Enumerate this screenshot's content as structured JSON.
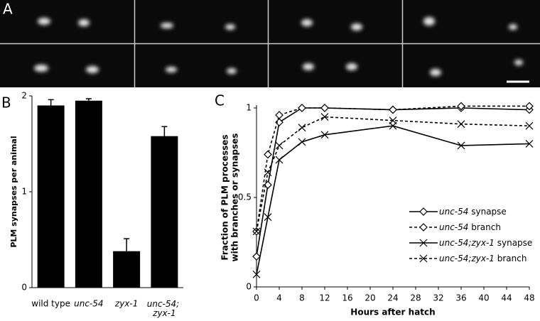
{
  "panels": [
    "A",
    "B",
    "C"
  ],
  "chart_data": [
    {
      "type": "bar",
      "y_label": "PLM synapses per animal",
      "categories": [
        "wild type",
        "unc-54",
        "zyx-1",
        "unc-54; zyx-1"
      ],
      "values": [
        1.9,
        1.95,
        0.38,
        1.58
      ],
      "errors": [
        0.06,
        0.02,
        0.13,
        0.1
      ],
      "color": "#000000",
      "ylim": [
        0,
        2
      ],
      "yticks": [
        0,
        1,
        2
      ]
    },
    {
      "type": "line",
      "x_label": "Hours after hatch",
      "y_label": [
        "Fraction of PLM processes",
        "with branches or synapses"
      ],
      "x": [
        0,
        2,
        4,
        8,
        12,
        24,
        36,
        48
      ],
      "series": [
        {
          "name": "unc-54 synapse",
          "color": "#000000",
          "dash": false,
          "marker": "diamond",
          "values": [
            0.17,
            0.57,
            0.92,
            1.0,
            1.0,
            0.99,
            1.0,
            0.99
          ]
        },
        {
          "name": "unc-54 branch",
          "color": "#000000",
          "dash": true,
          "marker": "diamond",
          "values": [
            0.31,
            0.74,
            0.96,
            1.0,
            1.0,
            0.99,
            1.01,
            1.01
          ]
        },
        {
          "name": "unc-54;zyx-1 synapse",
          "color": "#000000",
          "dash": false,
          "marker": "x",
          "values": [
            0.07,
            0.39,
            0.71,
            0.81,
            0.85,
            0.9,
            0.79,
            0.8
          ]
        },
        {
          "name": "unc-54;zyx-1 branch",
          "color": "#000000",
          "dash": true,
          "marker": "x",
          "values": [
            0.31,
            0.64,
            0.79,
            0.89,
            0.95,
            0.93,
            0.91,
            0.9
          ]
        }
      ],
      "xlim": [
        0,
        48
      ],
      "xticks": [
        0,
        4,
        8,
        12,
        16,
        20,
        24,
        28,
        32,
        36,
        40,
        44,
        48
      ],
      "ylim": [
        0,
        1
      ],
      "yticks": [
        0,
        0.5,
        1
      ]
    }
  ]
}
